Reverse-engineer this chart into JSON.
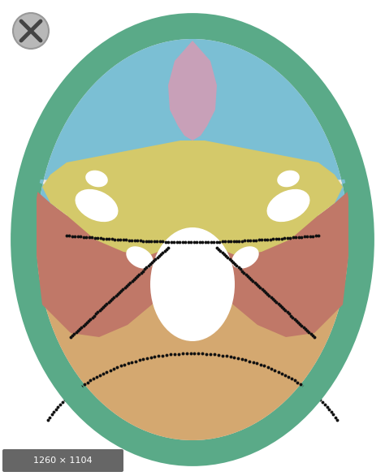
{
  "bg_color": "#ffffff",
  "frontal_color": "#7bbfd4",
  "sphenoid_color": "#d4c96a",
  "temporal_color": "#c07868",
  "occipital_color": "#d4a870",
  "parietal_color": "#5aaa88",
  "pink_color": "#c8a0b8",
  "foramen_color": "#ffffff",
  "dot_color": "#111111",
  "dim_label": "1260 × 1104",
  "dim_bg": "#666666"
}
